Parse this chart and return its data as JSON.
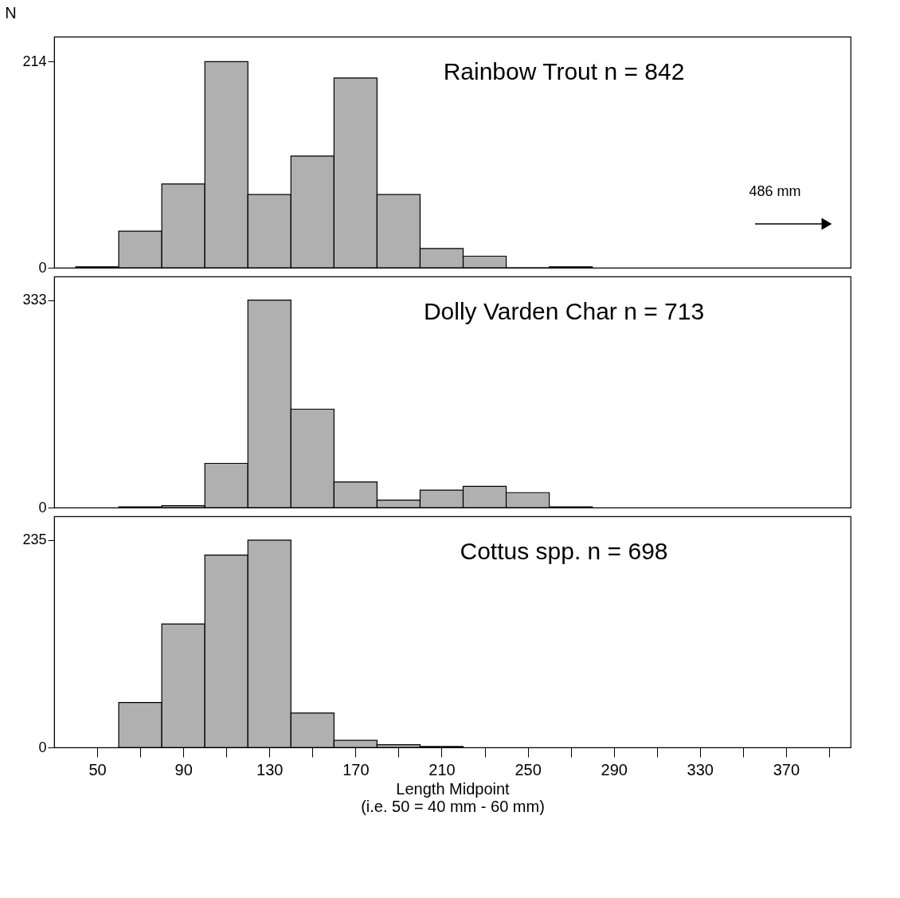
{
  "chart_data": [
    {
      "type": "histogram",
      "title": "Rainbow Trout n = 842",
      "ylabel": "N",
      "color": "#b0b0b0",
      "bins": [
        40,
        60,
        80,
        100,
        120,
        140,
        160,
        180,
        200,
        220,
        240,
        260,
        280
      ],
      "values": [
        1,
        38,
        87,
        214,
        76,
        116,
        197,
        76,
        20,
        12,
        0,
        1
      ],
      "xlim": [
        30,
        400
      ],
      "ylim": [
        0,
        240
      ],
      "yticks": [
        0,
        214
      ],
      "tick_labels": "y",
      "grid": false,
      "annotations": [
        "486 mm"
      ]
    },
    {
      "type": "histogram",
      "title": "Dolly Varden Char n = 713",
      "color": "#b0b0b0",
      "bins": [
        60,
        80,
        100,
        120,
        140,
        160,
        180,
        200,
        220,
        240,
        260,
        280
      ],
      "values": [
        1,
        3,
        71,
        333,
        158,
        41,
        12,
        28,
        34,
        24,
        1
      ],
      "xlim": [
        30,
        400
      ],
      "ylim": [
        0,
        371
      ],
      "yticks": [
        0,
        333
      ],
      "tick_labels": "y",
      "grid": false
    },
    {
      "type": "histogram",
      "title": "Cottus spp. n = 698",
      "xlabel": "Length Midpoint\n(i.e. 50 = 40 mm - 60 mm)",
      "color": "#b0b0b0",
      "bins": [
        60,
        80,
        100,
        120,
        140,
        160,
        180,
        200,
        220
      ],
      "values": [
        51,
        140,
        218,
        235,
        39,
        8,
        3,
        1
      ],
      "xlim": [
        30,
        400
      ],
      "ylim": [
        0,
        262
      ],
      "yticks": [
        0,
        235
      ],
      "xticks": [
        50,
        {
          "value": 70,
          "label": null
        },
        90,
        {
          "value": 110,
          "label": null
        },
        130,
        {
          "value": 150,
          "label": null
        },
        170,
        {
          "value": 190,
          "label": null
        },
        210,
        {
          "value": 230,
          "label": null
        },
        250,
        {
          "value": 270,
          "label": null
        },
        290,
        {
          "value": 310,
          "label": null
        },
        330,
        {
          "value": 350,
          "label": null
        },
        370,
        {
          "value": 390,
          "label": null
        }
      ],
      "grid": false
    }
  ]
}
